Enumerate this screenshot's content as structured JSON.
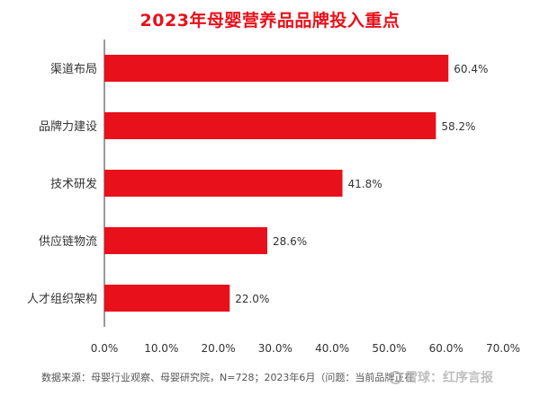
{
  "chart_data": {
    "type": "bar",
    "orientation": "horizontal",
    "title": "2023年母婴营养品品牌投入重点",
    "categories": [
      "渠道布局",
      "品牌力建设",
      "技术研发",
      "供应链物流",
      "人才组织架构"
    ],
    "values": [
      60.4,
      58.2,
      41.8,
      28.6,
      22.0
    ],
    "value_labels": [
      "60.4%",
      "58.2%",
      "41.8%",
      "28.6%",
      "22.0%"
    ],
    "xlim": [
      0,
      70
    ],
    "x_ticks": [
      "0.0%",
      "10.0%",
      "20.0%",
      "30.0%",
      "40.0%",
      "50.0%",
      "60.0%",
      "70.0%"
    ],
    "grid": false,
    "bar_color": "#e8101a"
  },
  "source_note": "数据来源：母婴行业观察、母婴研究院，N=728；2023年6月（问题：当前品牌正在",
  "watermark": "雪球：红序言报"
}
